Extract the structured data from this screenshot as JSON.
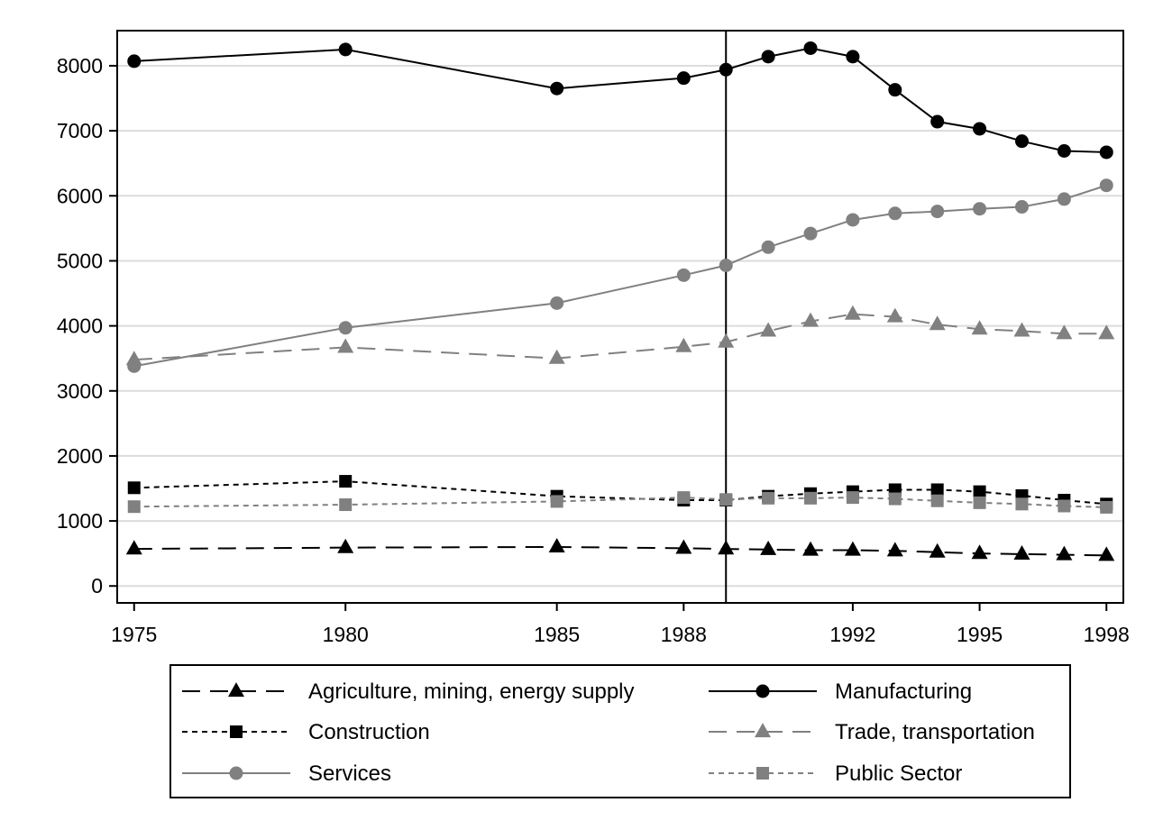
{
  "chart_data": {
    "type": "line",
    "title": "",
    "xlabel": "",
    "ylabel": "",
    "x": [
      1975,
      1980,
      1985,
      1988,
      1989,
      1990,
      1991,
      1992,
      1993,
      1994,
      1995,
      1996,
      1997,
      1998
    ],
    "xlim": [
      1974.6,
      1998.4
    ],
    "ylim": [
      -260,
      8540
    ],
    "x_ticks": [
      1975,
      1980,
      1985,
      1988,
      1992,
      1995,
      1998
    ],
    "x_tick_labels": [
      "1975",
      "1980",
      "1985",
      "1988",
      "1992",
      "1995",
      "1998"
    ],
    "y_ticks": [
      0,
      1000,
      2000,
      3000,
      4000,
      5000,
      6000,
      7000,
      8000
    ],
    "y_tick_labels": [
      "0",
      "1000",
      "2000",
      "3000",
      "4000",
      "5000",
      "6000",
      "7000",
      "8000"
    ],
    "grid": "horizontal",
    "reference_line_x": 1989,
    "legend_position": "bottom",
    "series": [
      {
        "name": "Agriculture, mining, energy supply",
        "x": [
          1975,
          1980,
          1985,
          1988,
          1989,
          1990,
          1991,
          1992,
          1993,
          1994,
          1995,
          1996,
          1997,
          1998
        ],
        "values": [
          570,
          590,
          600,
          580,
          570,
          560,
          550,
          550,
          540,
          520,
          500,
          490,
          480,
          470
        ],
        "color": "#000000",
        "dash": "long",
        "marker": "triangle"
      },
      {
        "name": "Manufacturing",
        "x": [
          1975,
          1980,
          1985,
          1988,
          1989,
          1990,
          1991,
          1992,
          1993,
          1994,
          1995,
          1996,
          1997,
          1998
        ],
        "values": [
          8070,
          8250,
          7650,
          7810,
          7940,
          8140,
          8270,
          8140,
          7630,
          7140,
          7030,
          6840,
          6690,
          6670
        ],
        "color": "#000000",
        "dash": "solid",
        "marker": "circle"
      },
      {
        "name": "Construction",
        "x": [
          1975,
          1980,
          1985,
          1988,
          1989,
          1990,
          1991,
          1992,
          1993,
          1994,
          1995,
          1996,
          1997,
          1998
        ],
        "values": [
          1510,
          1610,
          1380,
          1320,
          1320,
          1380,
          1420,
          1450,
          1480,
          1480,
          1450,
          1390,
          1320,
          1260
        ],
        "color": "#000000",
        "dash": "short",
        "marker": "square"
      },
      {
        "name": "Trade, transportation",
        "x": [
          1975,
          1980,
          1985,
          1988,
          1989,
          1990,
          1991,
          1992,
          1993,
          1994,
          1995,
          1996,
          1997,
          1998
        ],
        "values": [
          3480,
          3670,
          3500,
          3680,
          3750,
          3920,
          4070,
          4180,
          4140,
          4020,
          3950,
          3920,
          3880,
          3880
        ],
        "color": "#808080",
        "dash": "long",
        "marker": "triangle"
      },
      {
        "name": "Services",
        "x": [
          1975,
          1980,
          1985,
          1988,
          1989,
          1990,
          1991,
          1992,
          1993,
          1994,
          1995,
          1996,
          1997,
          1998
        ],
        "values": [
          3380,
          3970,
          4350,
          4780,
          4930,
          5210,
          5420,
          5630,
          5730,
          5760,
          5800,
          5830,
          5950,
          6160
        ],
        "color": "#808080",
        "dash": "solid",
        "marker": "circle"
      },
      {
        "name": "Public Sector",
        "x": [
          1975,
          1980,
          1985,
          1988,
          1989,
          1990,
          1991,
          1992,
          1993,
          1994,
          1995,
          1996,
          1997,
          1998
        ],
        "values": [
          1220,
          1250,
          1300,
          1360,
          1330,
          1350,
          1350,
          1360,
          1340,
          1310,
          1280,
          1260,
          1230,
          1210
        ],
        "color": "#808080",
        "dash": "short",
        "marker": "square"
      }
    ]
  }
}
